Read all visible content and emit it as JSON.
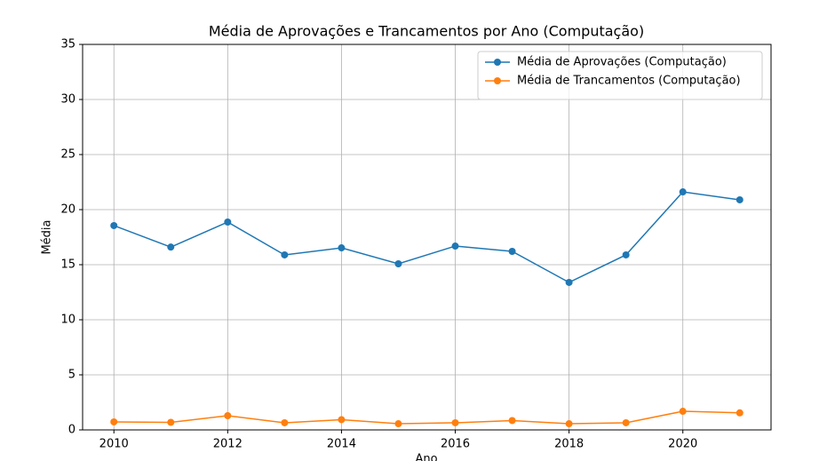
{
  "chart_data": {
    "type": "line",
    "title": "Média de Aprovações e Trancamentos por Ano (Computação)",
    "xlabel": "Ano",
    "ylabel": "Média",
    "x": [
      2010,
      2011,
      2012,
      2013,
      2014,
      2015,
      2016,
      2017,
      2018,
      2019,
      2020,
      2021
    ],
    "series": [
      {
        "name": "Média de Aprovações (Computação)",
        "color": "#1f77b4",
        "values": [
          18.55,
          16.6,
          18.87,
          15.89,
          16.53,
          15.08,
          16.69,
          16.21,
          13.39,
          15.89,
          21.61,
          20.89
        ]
      },
      {
        "name": "Média de Trancamentos (Computação)",
        "color": "#ff7f0e",
        "values": [
          0.73,
          0.69,
          1.29,
          0.65,
          0.93,
          0.56,
          0.65,
          0.85,
          0.56,
          0.65,
          1.69,
          1.55
        ]
      }
    ],
    "xlim": [
      2009.45,
      2021.55
    ],
    "xticks": [
      2010,
      2012,
      2014,
      2016,
      2018,
      2020
    ],
    "ylim": [
      0,
      35
    ],
    "yticks": [
      0,
      5,
      10,
      15,
      20,
      25,
      30,
      35
    ],
    "grid": true,
    "legend": "upper right"
  }
}
